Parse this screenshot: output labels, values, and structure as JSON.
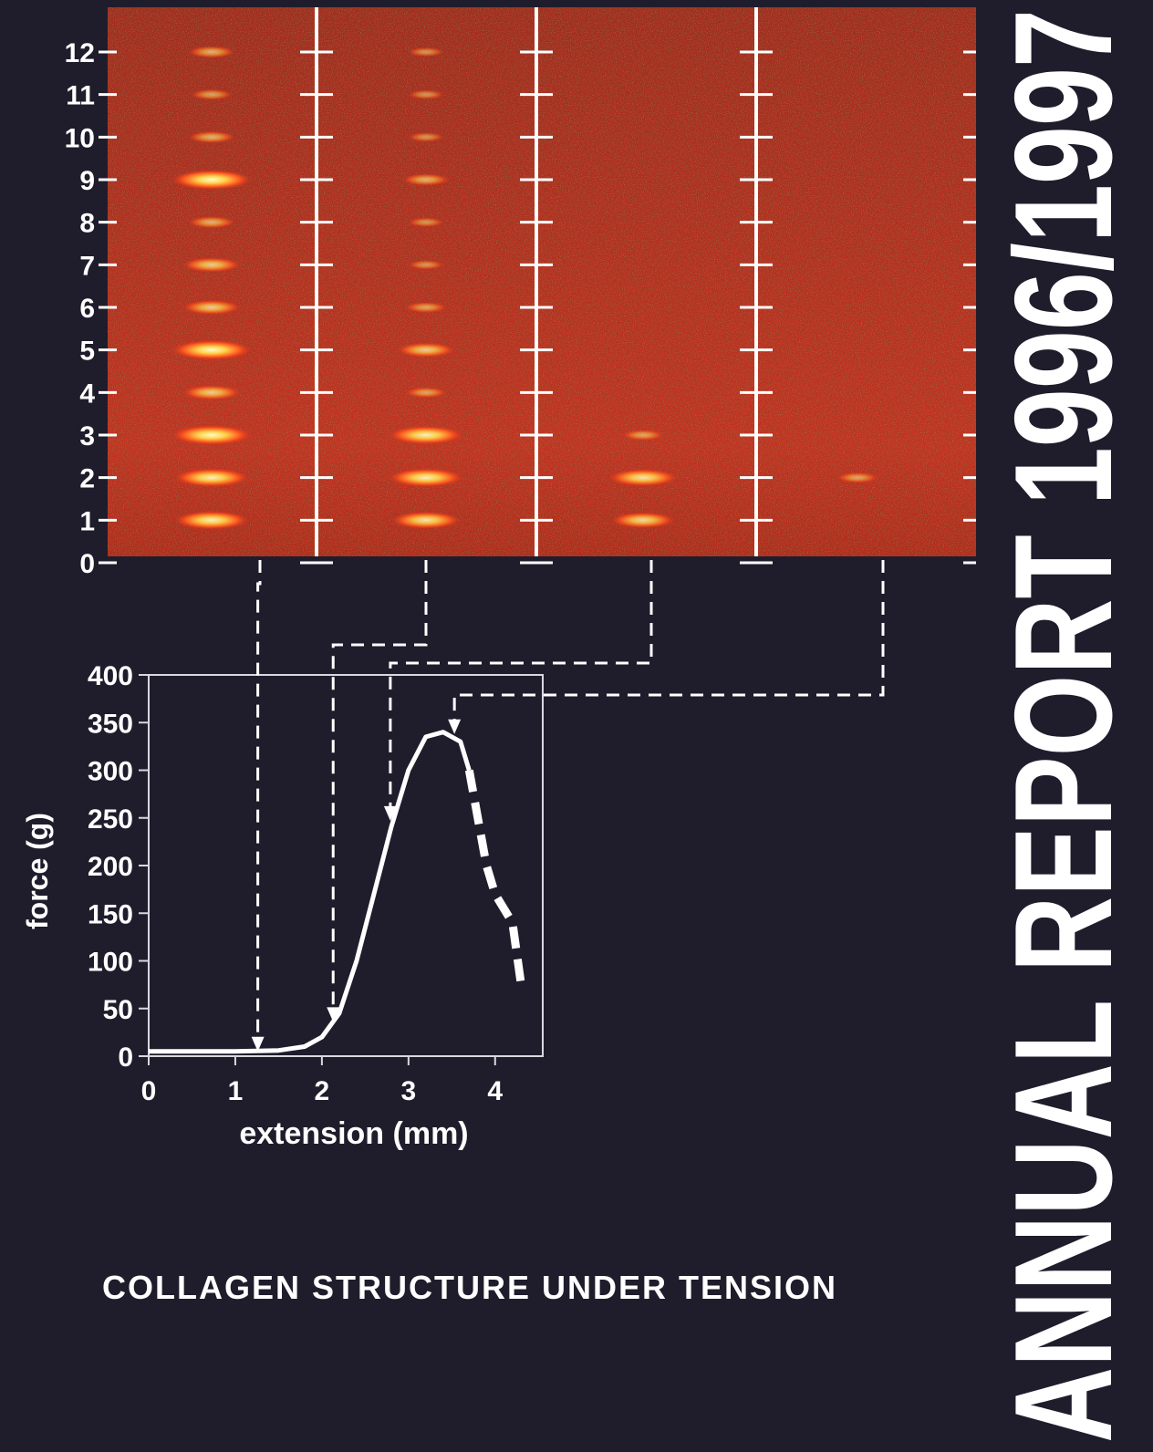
{
  "cover": {
    "title": "ANNUAL REPORT 1996/1997",
    "caption": "COLLAGEN STRUCTURE UNDER TENSION"
  },
  "chart_data": [
    {
      "type": "diffraction",
      "ylim": [
        0,
        12
      ],
      "yticks": [
        0,
        1,
        2,
        3,
        4,
        5,
        6,
        7,
        8,
        9,
        10,
        11,
        12
      ],
      "panels": [
        {
          "orders": [
            1,
            2,
            3,
            4,
            5,
            6,
            7,
            8,
            9,
            10,
            11,
            12
          ],
          "intensity": [
            0.9,
            0.9,
            1,
            0.6,
            1,
            0.6,
            0.6,
            0.4,
            1,
            0.4,
            0.3,
            0.4
          ]
        },
        {
          "orders": [
            1,
            2,
            3,
            4,
            5,
            6,
            7,
            8,
            9,
            10,
            11,
            12
          ],
          "intensity": [
            0.8,
            0.9,
            0.9,
            0.3,
            0.6,
            0.3,
            0.2,
            0.2,
            0.4,
            0.2,
            0.2,
            0.2
          ]
        },
        {
          "orders": [
            1,
            2,
            3
          ],
          "intensity": [
            0.7,
            0.8,
            0.3
          ]
        },
        {
          "orders": [
            2
          ],
          "intensity": [
            0.3
          ]
        }
      ]
    },
    {
      "type": "line",
      "xlabel": "extension (mm)",
      "ylabel": "force (g)",
      "xlim": [
        0,
        4.55
      ],
      "ylim": [
        0,
        400
      ],
      "xticks": [
        0,
        1,
        2,
        3,
        4
      ],
      "yticks": [
        0,
        50,
        100,
        150,
        200,
        250,
        300,
        350,
        400
      ],
      "color": "#ffffff",
      "lines": [
        {
          "style": "solid",
          "x": [
            0,
            1,
            1.5,
            1.8,
            2,
            2.2,
            2.4,
            2.6,
            2.8,
            3,
            3.2,
            3.4,
            3.6,
            3.7
          ],
          "y": [
            5,
            5,
            6,
            10,
            20,
            45,
            100,
            170,
            240,
            300,
            335,
            340,
            330,
            300
          ]
        },
        {
          "style": "dashed",
          "x": [
            3.7,
            3.8,
            3.9,
            4.0,
            4.2,
            4.3
          ],
          "y": [
            300,
            250,
            200,
            170,
            140,
            75
          ]
        }
      ],
      "markers": [
        {
          "x": 1.26,
          "y": 5
        },
        {
          "x": 2.13,
          "y": 36
        },
        {
          "x": 2.79,
          "y": 247
        },
        {
          "x": 3.53,
          "y": 338
        }
      ]
    }
  ]
}
